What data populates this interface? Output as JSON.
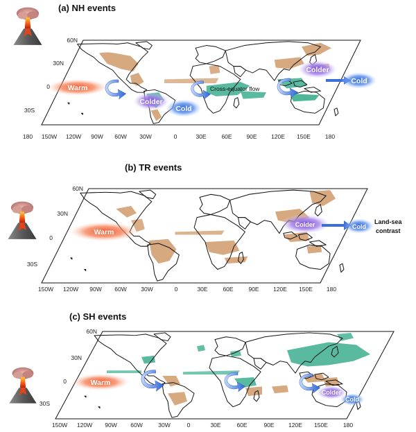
{
  "panels": [
    {
      "title": "(a) NH events",
      "labels": {
        "warm": "Warm",
        "colder1": "Colder",
        "cold1": "Cold",
        "colder2": "Colder",
        "cold2": "Cold",
        "flow": "Cross-equator flow"
      },
      "lat_ticks": [
        "60N",
        "30N",
        "0",
        "30S"
      ],
      "lon_ticks": [
        "180",
        "150W",
        "120W",
        "90W",
        "60W",
        "30W",
        "0",
        "30E",
        "60E",
        "90E",
        "120E",
        "150E",
        "180"
      ]
    },
    {
      "title": "(b) TR events",
      "labels": {
        "warm": "Warm",
        "colder": "Colder",
        "cold": "Cold",
        "contrast_1": "Land-sea",
        "contrast_2": "contrast"
      },
      "lat_ticks": [
        "60N",
        "30N",
        "0",
        "30S"
      ],
      "lon_ticks": [
        "150W",
        "120W",
        "90W",
        "60W",
        "30W",
        "0",
        "30E",
        "60E",
        "90E",
        "120E",
        "150E",
        "180"
      ]
    },
    {
      "title": "(c) SH events",
      "labels": {
        "warm": "Warm",
        "colder": "Colder",
        "cold": "Cold"
      },
      "lat_ticks": [
        "60N",
        "30N",
        "0",
        "30S"
      ],
      "lon_ticks": [
        "150W",
        "120W",
        "90W",
        "60W",
        "30W",
        "0",
        "30E",
        "60E",
        "90E",
        "120E",
        "150E",
        "180"
      ]
    }
  ],
  "colors": {
    "warm": "#f15a2a",
    "cold": "#2f6fe0",
    "colder": "#8a5ae0",
    "land_warm": "#cf9a6a",
    "land_green": "#3cae8e"
  },
  "icons": {
    "volcano": "volcano-icon",
    "arrow": "curved-arrow-icon"
  }
}
